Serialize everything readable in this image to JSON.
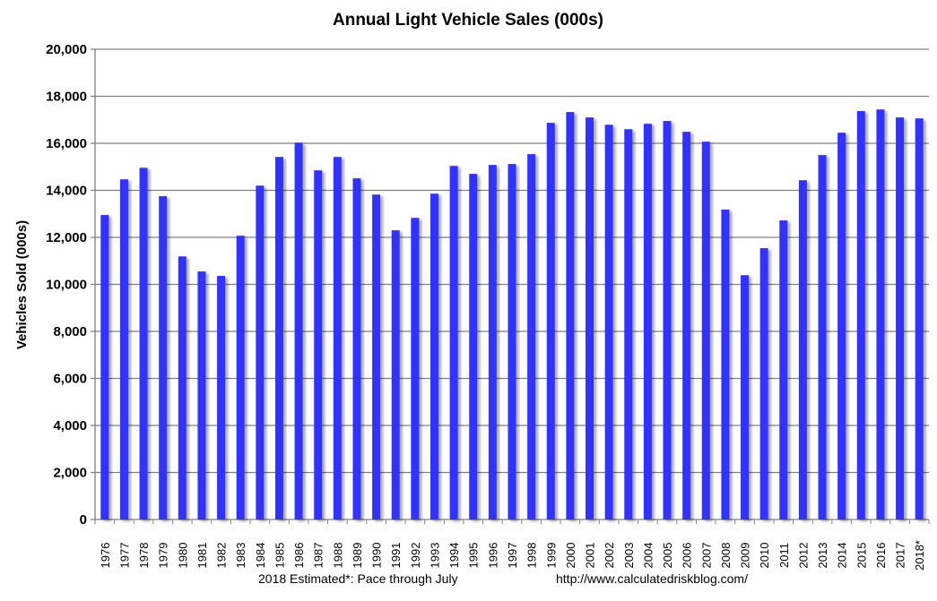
{
  "chart_data": {
    "type": "bar",
    "title": "Annual Light Vehicle Sales  (000s)",
    "xlabel": "",
    "ylabel": "Vehicles Sold (000s)",
    "ylim": [
      0,
      20000
    ],
    "yticks": [
      "0",
      "2,000",
      "4,000",
      "6,000",
      "8,000",
      "10,000",
      "12,000",
      "14,000",
      "16,000",
      "18,000",
      "20,000"
    ],
    "ytick_values": [
      0,
      2000,
      4000,
      6000,
      8000,
      10000,
      12000,
      14000,
      16000,
      18000,
      20000
    ],
    "grid": true,
    "bar_color": "#3333ff",
    "categories": [
      "1976",
      "1977",
      "1978",
      "1979",
      "1980",
      "1981",
      "1982",
      "1983",
      "1984",
      "1985",
      "1986",
      "1987",
      "1988",
      "1989",
      "1990",
      "1991",
      "1992",
      "1993",
      "1994",
      "1995",
      "1996",
      "1997",
      "1998",
      "1999",
      "2000",
      "2001",
      "2002",
      "2003",
      "2004",
      "2005",
      "2006",
      "2007",
      "2008",
      "2009",
      "2010",
      "2011",
      "2012",
      "2013",
      "2014",
      "2015",
      "2016",
      "2017",
      "2018*"
    ],
    "values": [
      12950,
      14470,
      14960,
      13750,
      11190,
      10550,
      10360,
      12070,
      14200,
      15420,
      16030,
      14850,
      15420,
      14510,
      13820,
      12300,
      12830,
      13860,
      15040,
      14700,
      15080,
      15120,
      15540,
      16870,
      17330,
      17100,
      16790,
      16600,
      16830,
      16950,
      16490,
      16070,
      13180,
      10390,
      11540,
      12720,
      14430,
      15500,
      16450,
      17370,
      17440,
      17100,
      17060
    ]
  },
  "footer": {
    "note": "2018 Estimated*: Pace through July",
    "source": "http://www.calculatedriskblog.com/"
  }
}
